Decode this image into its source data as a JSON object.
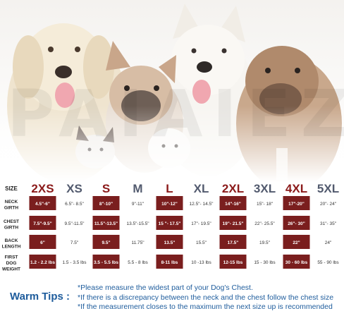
{
  "brand_watermark": "PAIAIEZ",
  "colors": {
    "highlight_column": "#7a1e1e",
    "highlight_size_label": "#8b1a1a",
    "plain_size_label": "#525a6e",
    "row_label": "#222222",
    "tips_text": "#1e5c9c"
  },
  "size_chart": {
    "row_labels": [
      [
        "SIZE"
      ],
      [
        "NECK",
        "GIRTH"
      ],
      [
        "CHEST",
        "GIRTH"
      ],
      [
        "BACK",
        "LENGTH"
      ],
      [
        "FIRST",
        "DOG",
        "WEIGHT"
      ]
    ],
    "sizes": [
      {
        "label": "2XS",
        "highlight": true,
        "neck": "4.5\"-6\"",
        "chest": "7.5\"-9.5\"",
        "back": "6\"",
        "weight": "1.2 - 2.2 lbs"
      },
      {
        "label": "XS",
        "highlight": false,
        "neck": "6.5\"- 8.5\"",
        "chest": "9.5\"-11.5\"",
        "back": "7.5\"",
        "weight": "1.5 - 3.5 lbs"
      },
      {
        "label": "S",
        "highlight": true,
        "neck": "8\"-10\"",
        "chest": "11.5\"-13.5\"",
        "back": "9.5\"",
        "weight": "3.5 - 5.5 lbs"
      },
      {
        "label": "M",
        "highlight": false,
        "neck": "9\"-11\"",
        "chest": "13.5\"-15.5\"",
        "back": "11.75\"",
        "weight": "5.5 - 8 lbs"
      },
      {
        "label": "L",
        "highlight": true,
        "neck": "10\"-12\"",
        "chest": "15 \"- 17.5\"",
        "back": "13.5\"",
        "weight": "8-11 lbs"
      },
      {
        "label": "XL",
        "highlight": false,
        "neck": "12.5\"- 14.5\"",
        "chest": "17\"- 19.5\"",
        "back": "15.5\"",
        "weight": "10 -13 lbs"
      },
      {
        "label": "2XL",
        "highlight": true,
        "neck": "14\"-16\"",
        "chest": "19\"- 21.5\"",
        "back": "17.5\"",
        "weight": "12-15 lbs"
      },
      {
        "label": "3XL",
        "highlight": false,
        "neck": "15\"- 18\"",
        "chest": "22\"- 25.5\"",
        "back": "19.5\"",
        "weight": "15 - 30 lbs"
      },
      {
        "label": "4XL",
        "highlight": true,
        "neck": "17\"-20\"",
        "chest": "26\"- 30\"",
        "back": "22\"",
        "weight": "30 - 60 lbs"
      },
      {
        "label": "5XL",
        "highlight": false,
        "neck": "20\"- 24\"",
        "chest": "31\"- 35\"",
        "back": "24\"",
        "weight": "55 - 90 lbs"
      }
    ]
  },
  "tips": {
    "title": "Warm Tips :",
    "lines": [
      "*Please measure the widest part of your Dog's Chest.",
      "*If there is a discrepancy between the neck and the chest  follow the chest size",
      "*If the measurement closes to the maximum the next size up is recommended"
    ]
  }
}
